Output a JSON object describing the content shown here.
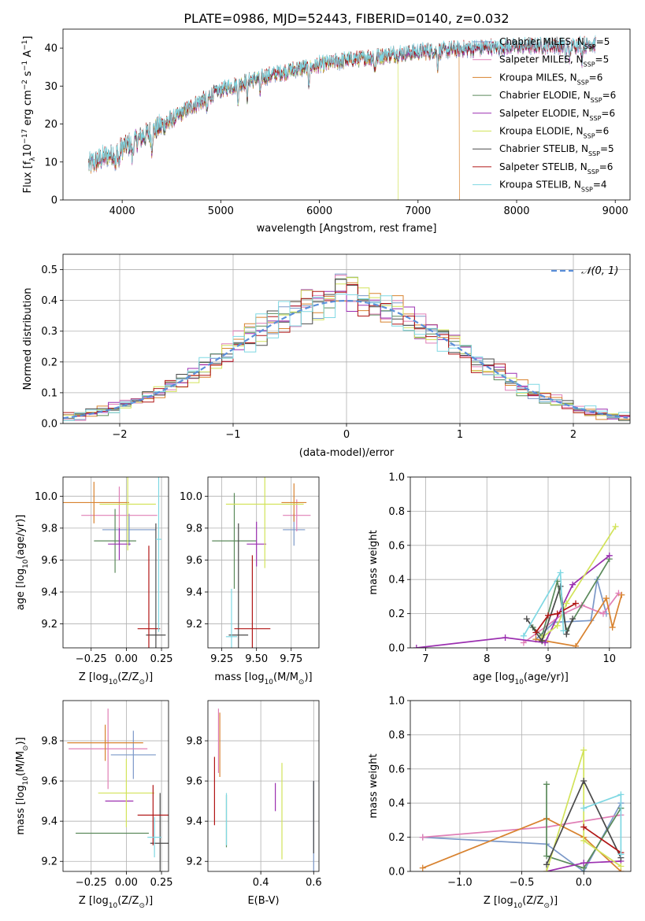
{
  "title": "PLATE=0986, MJD=52443, FIBERID=0140, z=0.032",
  "colors": [
    "#7b98c8",
    "#e07fb6",
    "#d8822f",
    "#5b8a5b",
    "#9b2fb0",
    "#d2e35a",
    "#4a4a4a",
    "#b11616",
    "#7fd8e3"
  ],
  "legend_names": [
    [
      "Chabrier MILES, N",
      "SSP",
      "=5"
    ],
    [
      "Salpeter MILES, N",
      "SSP",
      "=5"
    ],
    [
      "Kroupa MILES, N",
      "SSP",
      "=6"
    ],
    [
      "Chabrier ELODIE, N",
      "SSP",
      "=6"
    ],
    [
      "Salpeter ELODIE, N",
      "SSP",
      "=6"
    ],
    [
      "Kroupa ELODIE, N",
      "SSP",
      "=6"
    ],
    [
      "Chabrier STELIB, N",
      "SSP",
      "=5"
    ],
    [
      "Salpeter STELIB, N",
      "SSP",
      "=6"
    ],
    [
      "Kroupa STELIB, N",
      "SSP",
      "=4"
    ]
  ],
  "chart_data": [
    {
      "id": "spectrum",
      "type": "line",
      "xlabel": "wavelength [Angstrom, rest frame]",
      "ylabel_parts": [
        "Flux [f",
        "λ",
        "10",
        "−17",
        " erg cm",
        "−2",
        " s",
        "−1",
        " A",
        "−1",
        "]"
      ],
      "xlim": [
        3400,
        9150
      ],
      "ylim": [
        0,
        45
      ],
      "xticks": [
        4000,
        5000,
        6000,
        7000,
        8000,
        9000
      ],
      "yticks": [
        0,
        10,
        20,
        30,
        40
      ],
      "continuum": {
        "x": [
          3650,
          3800,
          3950,
          4100,
          4300,
          4500,
          4700,
          5000,
          5300,
          5600,
          5900,
          6200,
          6500,
          6800,
          7000,
          7300,
          7600,
          7900,
          8200,
          8500,
          8800
        ],
        "y": [
          9,
          11,
          13,
          15,
          18,
          21,
          24.5,
          29,
          31.5,
          33.5,
          35,
          36.5,
          37.5,
          38.5,
          39,
          39.5,
          40,
          40.3,
          40.6,
          40.8,
          41
        ]
      },
      "absorption_lines": [
        3934,
        3969,
        4102,
        4300,
        4861,
        5175,
        5270,
        5400,
        5893,
        6563,
        7200,
        8498,
        8542,
        8662
      ],
      "drops": [
        {
          "series": 2,
          "x": 7420
        },
        {
          "series": 5,
          "x": 6800
        }
      ]
    },
    {
      "id": "residual",
      "type": "histogram",
      "xlabel": "(data-model)/error",
      "ylabel": "Normed distribution",
      "xlim": [
        -2.5,
        2.5
      ],
      "ylim": [
        0,
        0.55
      ],
      "xticks": [
        -2,
        -1,
        0,
        1,
        2
      ],
      "yticks": [
        0.0,
        0.1,
        0.2,
        0.3,
        0.4,
        0.5
      ],
      "bin_width": 0.1,
      "model_legend": "𝒩(0, 1)",
      "grid": true
    },
    {
      "id": "age_vs_Z",
      "type": "errorbar",
      "xlabel_parts": [
        "Z [log",
        "10",
        "(Z/Z",
        "⊙",
        ")]"
      ],
      "ylabel_parts": [
        "age  [log",
        "10",
        "(age/yr)]"
      ],
      "xlim": [
        -0.45,
        0.3
      ],
      "ylim": [
        9.05,
        10.12
      ],
      "xticks": [
        -0.25,
        0.0,
        0.25
      ],
      "yticks": [
        9.2,
        9.4,
        9.6,
        9.8,
        10.0
      ],
      "points": [
        {
          "x": 0.02,
          "y": 9.79,
          "xe": 0.19,
          "ye": 0.1
        },
        {
          "x": -0.05,
          "y": 9.88,
          "xe": 0.27,
          "ye": 0.18
        },
        {
          "x": -0.23,
          "y": 9.96,
          "xe": 0.25,
          "ye": 0.13
        },
        {
          "x": -0.08,
          "y": 9.72,
          "xe": 0.15,
          "ye": 0.2
        },
        {
          "x": -0.05,
          "y": 9.7,
          "xe": 0.08,
          "ye": 0.1
        },
        {
          "x": 0.01,
          "y": 9.95,
          "xe": 0.2,
          "ye": 0.29
        },
        {
          "x": 0.21,
          "y": 9.13,
          "xe": 0.07,
          "ye": 0.7
        },
        {
          "x": 0.16,
          "y": 9.17,
          "xe": 0.08,
          "ye": 0.52
        },
        {
          "x": 0.23,
          "y": 9.73,
          "xe": 0.02,
          "ye": 0.58
        }
      ]
    },
    {
      "id": "age_vs_mass",
      "type": "errorbar",
      "xlabel_parts": [
        "mass [log",
        "10",
        "(M/M",
        "⊙",
        ")]"
      ],
      "xlim": [
        9.15,
        9.95
      ],
      "ylim": [
        9.05,
        10.12
      ],
      "xticks": [
        9.25,
        9.5,
        9.75
      ],
      "yticks": [
        9.2,
        9.4,
        9.6,
        9.8,
        10.0
      ],
      "points": [
        {
          "x": 9.77,
          "y": 9.79,
          "xe": 0.08,
          "ye": 0.1
        },
        {
          "x": 9.79,
          "y": 9.88,
          "xe": 0.1,
          "ye": 0.1
        },
        {
          "x": 9.77,
          "y": 9.96,
          "xe": 0.09,
          "ye": 0.12
        },
        {
          "x": 9.34,
          "y": 9.72,
          "xe": 0.16,
          "ye": 0.3
        },
        {
          "x": 9.5,
          "y": 9.7,
          "xe": 0.07,
          "ye": 0.14
        },
        {
          "x": 9.56,
          "y": 9.95,
          "xe": 0.28,
          "ye": 0.4
        },
        {
          "x": 9.37,
          "y": 9.13,
          "xe": 0.07,
          "ye": 0.7
        },
        {
          "x": 9.47,
          "y": 9.17,
          "xe": 0.13,
          "ye": 0.46
        },
        {
          "x": 9.32,
          "y": 9.12,
          "xe": 0.04,
          "ye": 0.3
        }
      ]
    },
    {
      "id": "weight_vs_age",
      "type": "line",
      "xlabel_parts": [
        "age  [log",
        "10",
        "(age/yr)]"
      ],
      "ylabel": "mass weight",
      "xlim": [
        6.75,
        10.35
      ],
      "ylim": [
        0,
        1
      ],
      "xticks": [
        7,
        8,
        9,
        10
      ],
      "yticks": [
        0.0,
        0.2,
        0.4,
        0.6,
        0.8,
        1.0
      ],
      "series": [
        {
          "x": [
            8.8,
            9.1,
            9.7,
            9.8,
            9.95
          ],
          "y": [
            0.05,
            0.15,
            0.16,
            0.4,
            0.2
          ]
        },
        {
          "x": [
            8.6,
            9.25,
            9.55,
            9.9,
            10.15
          ],
          "y": [
            0.03,
            0.2,
            0.25,
            0.2,
            0.32
          ]
        },
        {
          "x": [
            8.8,
            9.45,
            9.95,
            10.05,
            10.2
          ],
          "y": [
            0.05,
            0.01,
            0.29,
            0.12,
            0.31
          ]
        },
        {
          "x": [
            8.75,
            8.9,
            9.15,
            9.3,
            10.0
          ],
          "y": [
            0.12,
            0.07,
            0.39,
            0.1,
            0.52
          ]
        },
        {
          "x": [
            6.85,
            8.3,
            8.95,
            9.4,
            10.0
          ],
          "y": [
            0.0,
            0.06,
            0.03,
            0.37,
            0.54
          ]
        },
        {
          "x": [
            8.9,
            9.15,
            9.3,
            10.1
          ],
          "y": [
            0.06,
            0.13,
            0.26,
            0.71
          ]
        },
        {
          "x": [
            8.65,
            8.9,
            9.2,
            9.3,
            9.4
          ],
          "y": [
            0.17,
            0.04,
            0.36,
            0.08,
            0.17
          ]
        },
        {
          "x": [
            8.8,
            9.0,
            9.15,
            9.45
          ],
          "y": [
            0.09,
            0.19,
            0.2,
            0.26
          ]
        },
        {
          "x": [
            8.6,
            9.2,
            9.25
          ],
          "y": [
            0.07,
            0.44,
            0.1
          ]
        }
      ]
    },
    {
      "id": "mass_vs_Z",
      "type": "errorbar",
      "xlabel_parts": [
        "Z [log",
        "10",
        "(Z/Z",
        "⊙",
        ")]"
      ],
      "ylabel_parts": [
        "mass [log",
        "10",
        "(M/M",
        "⊙",
        ")]"
      ],
      "xlim": [
        -0.45,
        0.3
      ],
      "ylim": [
        9.15,
        10.0
      ],
      "xticks": [
        -0.25,
        0.0,
        0.25
      ],
      "yticks": [
        9.2,
        9.4,
        9.6,
        9.8
      ],
      "points": [
        {
          "x": 0.05,
          "y": 9.73,
          "xe": 0.16,
          "ye": 0.12
        },
        {
          "x": -0.13,
          "y": 9.76,
          "xe": 0.28,
          "ye": 0.2
        },
        {
          "x": -0.15,
          "y": 9.79,
          "xe": 0.27,
          "ye": 0.09
        },
        {
          "x": -0.1,
          "y": 9.34,
          "xe": 0.26,
          "ye": 0.0
        },
        {
          "x": -0.05,
          "y": 9.5,
          "xe": 0.1,
          "ye": 0.0
        },
        {
          "x": 0.0,
          "y": 9.54,
          "xe": 0.2,
          "ye": 0.17
        },
        {
          "x": 0.24,
          "y": 9.29,
          "xe": 0.07,
          "ye": 0.25
        },
        {
          "x": 0.19,
          "y": 9.43,
          "xe": 0.11,
          "ye": 0.15
        },
        {
          "x": 0.2,
          "y": 9.32,
          "xe": 0.05,
          "ye": 0.1
        }
      ]
    },
    {
      "id": "mass_vs_EBV",
      "type": "errorbar",
      "xlabel": "E(B-V)",
      "xlim": [
        0.2,
        0.62
      ],
      "ylim": [
        9.15,
        10.0
      ],
      "xticks": [
        0.4,
        0.6
      ],
      "yticks": [
        9.2,
        9.4,
        9.6,
        9.8
      ],
      "points": [
        {
          "x": 0.6,
          "y": 9.2,
          "xe": 0,
          "ye": 0.4
        },
        {
          "x": 0.24,
          "y": 9.8,
          "xe": 0,
          "ye": 0.16
        },
        {
          "x": 0.245,
          "y": 9.78,
          "xe": 0,
          "ye": 0.16
        },
        {
          "x": 0.27,
          "y": 9.4,
          "xe": 0,
          "ye": 0.13
        },
        {
          "x": 0.455,
          "y": 9.52,
          "xe": 0,
          "ye": 0.07
        },
        {
          "x": 0.48,
          "y": 9.45,
          "xe": 0,
          "ye": 0.24
        },
        {
          "x": 0.6,
          "y": 9.42,
          "xe": 0,
          "ye": 0.18
        },
        {
          "x": 0.225,
          "y": 9.55,
          "xe": 0,
          "ye": 0.17
        },
        {
          "x": 0.27,
          "y": 9.41,
          "xe": 0,
          "ye": 0.13
        }
      ]
    },
    {
      "id": "weight_vs_Z",
      "type": "line",
      "xlabel_parts": [
        "Z [log",
        "10",
        "(Z/Z",
        "⊙",
        ")]"
      ],
      "ylabel": "mass weight",
      "xlim": [
        -1.4,
        0.38
      ],
      "ylim": [
        0,
        1
      ],
      "xticks": [
        -1.0,
        -0.5,
        0.0
      ],
      "yticks": [
        0.0,
        0.2,
        0.4,
        0.6,
        0.8,
        1.0
      ],
      "series": [
        {
          "x": [
            -1.3,
            -0.3,
            0.0,
            0.3
          ],
          "y": [
            0.2,
            0.16,
            0.0,
            0.4
          ]
        },
        {
          "x": [
            -1.3,
            -0.3,
            0.3
          ],
          "y": [
            0.2,
            0.26,
            0.33
          ]
        },
        {
          "x": [
            -1.3,
            -0.3,
            0.0,
            0.3
          ],
          "y": [
            0.02,
            0.31,
            0.2,
            0.0
          ]
        },
        {
          "x": [
            -0.3,
            -0.3,
            0.0,
            0.3
          ],
          "y": [
            0.51,
            0.09,
            0.02,
            0.37
          ]
        },
        {
          "x": [
            -0.3,
            0.0,
            0.3
          ],
          "y": [
            0.0,
            0.05,
            0.06
          ]
        },
        {
          "x": [
            -0.3,
            0.0,
            0.0,
            0.3
          ],
          "y": [
            0.0,
            0.71,
            0.18,
            0.03
          ]
        },
        {
          "x": [
            -0.3,
            0.0,
            0.3
          ],
          "y": [
            0.04,
            0.53,
            0.08
          ]
        },
        {
          "x": [
            0.0,
            0.3
          ],
          "y": [
            0.26,
            0.11
          ]
        },
        {
          "x": [
            0.0,
            0.3,
            0.3
          ],
          "y": [
            0.37,
            0.45,
            0.1
          ]
        }
      ]
    }
  ]
}
